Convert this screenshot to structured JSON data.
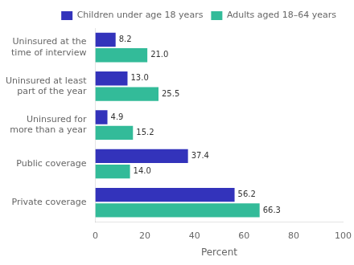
{
  "chart_data": {
    "type": "bar",
    "orientation": "horizontal",
    "categories": [
      "Uninsured at the\ntime of interview",
      "Uninsured at least\npart of the year",
      "Uninsured for\nmore than a year",
      "Public coverage",
      "Private coverage"
    ],
    "series": [
      {
        "name": "Children under age 18 years",
        "color": "#3333bb",
        "values": [
          8.2,
          13.0,
          4.9,
          37.4,
          56.2
        ],
        "value_labels": [
          "8.2",
          "13.0",
          "4.9",
          "37.4",
          "56.2"
        ]
      },
      {
        "name": "Adults aged 18–64 years",
        "color": "#33bb99",
        "values": [
          21.0,
          25.5,
          15.2,
          14.0,
          66.3
        ],
        "value_labels": [
          "21.0",
          "25.5",
          "15.2",
          "14.0",
          "66.3"
        ]
      }
    ],
    "x_label": "Percent",
    "xlim": [
      0,
      100
    ],
    "xticks": [
      0,
      20,
      40,
      60,
      80,
      100
    ],
    "grid": false,
    "legend": "upper right",
    "data_labels": true
  }
}
